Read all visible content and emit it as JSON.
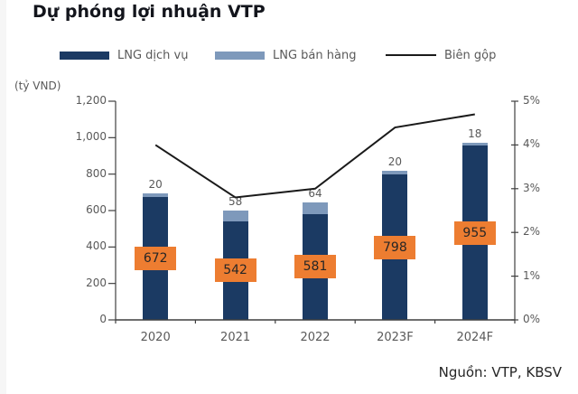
{
  "title": "Dự phóng lợi nhuận VTP",
  "unit_label": "(tỷ VND)",
  "source": "Nguồn: VTP, KBSV",
  "legend": [
    {
      "label": "LNG dịch vụ",
      "swatch": "box",
      "color": "#1B3A63"
    },
    {
      "label": "LNG bán hàng",
      "swatch": "box",
      "color": "#7E99BB"
    },
    {
      "label": "Biên gộp",
      "swatch": "line",
      "color": "#1A1A1A"
    }
  ],
  "chart_data": {
    "type": "bar",
    "subtype": "stacked-bars-with-line-overlay",
    "title": "Dự phóng lợi nhuận VTP",
    "categories": [
      "2020",
      "2021",
      "2022",
      "2023F",
      "2024F"
    ],
    "series": [
      {
        "name": "LNG dịch vụ",
        "type": "bar",
        "stack": "total",
        "values": [
          672,
          542,
          581,
          798,
          955
        ],
        "color": "#1B3A63",
        "label_style": "orange-box-center"
      },
      {
        "name": "LNG bán hàng",
        "type": "bar",
        "stack": "total",
        "values": [
          20,
          58,
          64,
          20,
          18
        ],
        "color": "#7E99BB",
        "label_style": "above-bar"
      },
      {
        "name": "Biên gộp",
        "type": "line",
        "axis": "right",
        "values": [
          4.0,
          2.8,
          3.0,
          4.4,
          4.7
        ],
        "unit": "%",
        "color": "#1A1A1A"
      }
    ],
    "left_axis": {
      "label": "(tỷ VND)",
      "min": 0,
      "max": 1200,
      "step": 200
    },
    "right_axis": {
      "min": 0,
      "max": 5,
      "step": 1,
      "suffix": "%"
    },
    "grid": false,
    "legend_position": "top",
    "label_box_color": "#ED7D31",
    "axis_color": "#3f3f3f"
  }
}
